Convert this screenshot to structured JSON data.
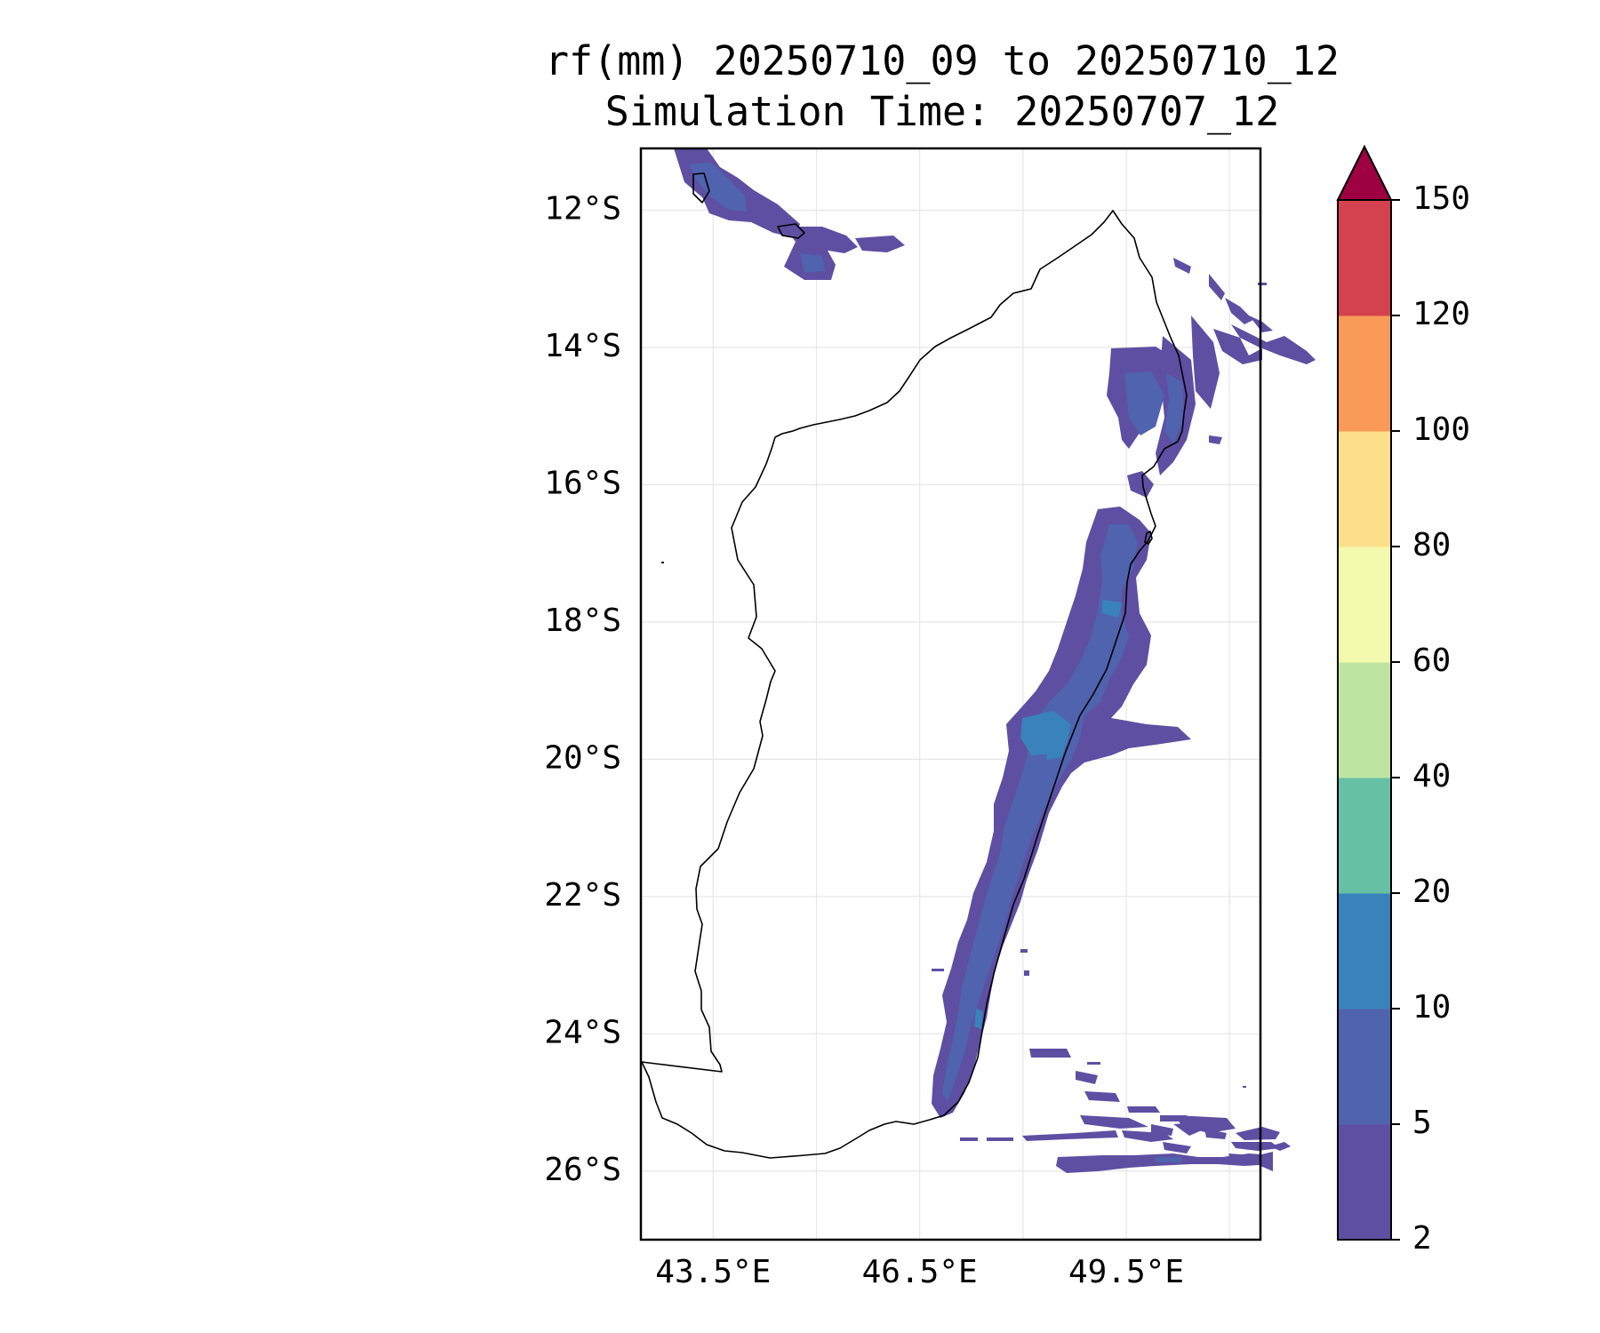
{
  "title": "rf(mm) 20250710_09 to 20250710_12",
  "subtitle": "Simulation Time: 20250707_12",
  "map": {
    "region": "Madagascar",
    "projection": "PlateCarree",
    "lon_range": [
      42.45,
      51.45
    ],
    "lat_range": [
      -27.0,
      -11.1
    ],
    "lat_ticks": [
      "12°S",
      "14°S",
      "16°S",
      "18°S",
      "20°S",
      "22°S",
      "24°S",
      "26°S"
    ],
    "lon_ticks": [
      "43.5°E",
      "46.5°E",
      "49.5°E"
    ],
    "gridlines": true
  },
  "chart_data": {
    "type": "heatmap",
    "variable": "rf(mm)",
    "colorbar": {
      "levels": [
        2,
        5,
        10,
        20,
        40,
        60,
        80,
        100,
        120,
        150
      ],
      "tick_labels": [
        "2",
        "5",
        "10",
        "20",
        "40",
        "60",
        "80",
        "100",
        "120",
        "150"
      ],
      "colors": [
        "#5e4fa2",
        "#4f63ae",
        "#3a82bb",
        "#66c0a6",
        "#bde4a0",
        "#f4faad",
        "#fddf8b",
        "#f99a58",
        "#d5424f"
      ],
      "extend_color": "#9e0142",
      "extend": "max"
    }
  }
}
